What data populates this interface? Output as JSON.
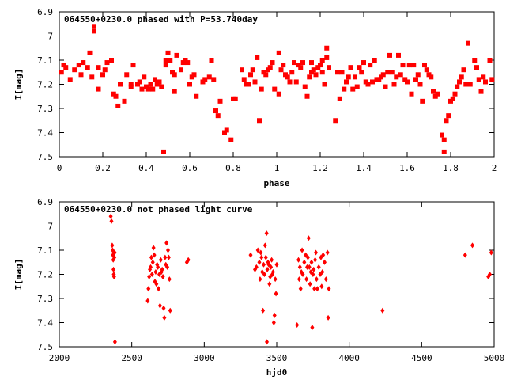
{
  "chart_data": [
    {
      "type": "scatter",
      "title": "064550+0230.0 phased with P=53.740day",
      "xlabel": "phase",
      "ylabel": "I[mag]",
      "xlim": [
        0,
        2
      ],
      "ylim": [
        6.9,
        7.5
      ],
      "y_inverted": true,
      "xticks": [
        "0",
        "0.2",
        "0.4",
        "0.6",
        "0.8",
        "1",
        "1.2",
        "1.4",
        "1.6",
        "1.8",
        "2"
      ],
      "yticks": [
        "6.9",
        "7",
        "7.1",
        "7.2",
        "7.3",
        "7.4",
        "7.5"
      ],
      "marker": "filled-square",
      "color": "#ff0000",
      "points": [
        [
          0.01,
          7.15
        ],
        [
          0.02,
          7.12
        ],
        [
          0.03,
          7.13
        ],
        [
          0.05,
          7.18
        ],
        [
          0.07,
          7.14
        ],
        [
          0.09,
          7.12
        ],
        [
          0.1,
          7.16
        ],
        [
          0.11,
          7.11
        ],
        [
          0.13,
          7.13
        ],
        [
          0.14,
          7.07
        ],
        [
          0.15,
          7.17
        ],
        [
          0.16,
          6.96
        ],
        [
          0.16,
          6.98
        ],
        [
          0.18,
          7.13
        ],
        [
          0.18,
          7.22
        ],
        [
          0.2,
          7.16
        ],
        [
          0.21,
          7.14
        ],
        [
          0.22,
          7.11
        ],
        [
          0.24,
          7.1
        ],
        [
          0.25,
          7.24
        ],
        [
          0.26,
          7.25
        ],
        [
          0.27,
          7.29
        ],
        [
          0.28,
          7.2
        ],
        [
          0.3,
          7.27
        ],
        [
          0.31,
          7.16
        ],
        [
          0.33,
          7.21
        ],
        [
          0.33,
          7.2
        ],
        [
          0.34,
          7.12
        ],
        [
          0.36,
          7.2
        ],
        [
          0.37,
          7.19
        ],
        [
          0.38,
          7.22
        ],
        [
          0.39,
          7.17
        ],
        [
          0.4,
          7.21
        ],
        [
          0.41,
          7.22
        ],
        [
          0.42,
          7.2
        ],
        [
          0.43,
          7.22
        ],
        [
          0.44,
          7.18
        ],
        [
          0.45,
          7.2
        ],
        [
          0.46,
          7.19
        ],
        [
          0.47,
          7.21
        ],
        [
          0.48,
          7.48
        ],
        [
          0.49,
          7.1
        ],
        [
          0.49,
          7.12
        ],
        [
          0.5,
          7.07
        ],
        [
          0.51,
          7.1
        ],
        [
          0.52,
          7.15
        ],
        [
          0.53,
          7.16
        ],
        [
          0.53,
          7.23
        ],
        [
          0.54,
          7.08
        ],
        [
          0.56,
          7.14
        ],
        [
          0.57,
          7.11
        ],
        [
          0.58,
          7.1
        ],
        [
          0.59,
          7.11
        ],
        [
          0.6,
          7.2
        ],
        [
          0.61,
          7.17
        ],
        [
          0.62,
          7.16
        ],
        [
          0.63,
          7.25
        ],
        [
          0.66,
          7.19
        ],
        [
          0.67,
          7.18
        ],
        [
          0.69,
          7.17
        ],
        [
          0.7,
          7.1
        ],
        [
          0.71,
          7.18
        ],
        [
          0.72,
          7.31
        ],
        [
          0.73,
          7.33
        ],
        [
          0.74,
          7.27
        ],
        [
          0.76,
          7.4
        ],
        [
          0.77,
          7.39
        ],
        [
          0.79,
          7.43
        ],
        [
          0.8,
          7.26
        ],
        [
          0.81,
          7.26
        ],
        [
          0.84,
          7.14
        ],
        [
          0.85,
          7.18
        ],
        [
          0.86,
          7.2
        ],
        [
          0.87,
          7.2
        ],
        [
          0.88,
          7.16
        ],
        [
          0.89,
          7.14
        ],
        [
          0.9,
          7.19
        ],
        [
          0.91,
          7.09
        ],
        [
          0.92,
          7.35
        ],
        [
          0.93,
          7.22
        ],
        [
          0.94,
          7.15
        ],
        [
          0.95,
          7.16
        ],
        [
          0.96,
          7.14
        ],
        [
          0.97,
          7.13
        ],
        [
          0.98,
          7.11
        ],
        [
          0.99,
          7.22
        ],
        [
          1.01,
          7.24
        ],
        [
          1.01,
          7.07
        ],
        [
          1.02,
          7.14
        ],
        [
          1.03,
          7.12
        ],
        [
          1.04,
          7.16
        ],
        [
          1.05,
          7.17
        ],
        [
          1.06,
          7.19
        ],
        [
          1.07,
          7.15
        ],
        [
          1.08,
          7.11
        ],
        [
          1.09,
          7.19
        ],
        [
          1.1,
          7.12
        ],
        [
          1.11,
          7.13
        ],
        [
          1.12,
          7.11
        ],
        [
          1.13,
          7.21
        ],
        [
          1.14,
          7.25
        ],
        [
          1.15,
          7.17
        ],
        [
          1.16,
          7.11
        ],
        [
          1.16,
          7.15
        ],
        [
          1.17,
          7.14
        ],
        [
          1.18,
          7.16
        ],
        [
          1.19,
          7.13
        ],
        [
          1.2,
          7.12
        ],
        [
          1.21,
          7.15
        ],
        [
          1.21,
          7.1
        ],
        [
          1.22,
          7.2
        ],
        [
          1.23,
          7.05
        ],
        [
          1.23,
          7.09
        ],
        [
          1.24,
          7.13
        ],
        [
          1.27,
          7.35
        ],
        [
          1.28,
          7.15
        ],
        [
          1.29,
          7.26
        ],
        [
          1.3,
          7.15
        ],
        [
          1.31,
          7.22
        ],
        [
          1.32,
          7.19
        ],
        [
          1.33,
          7.17
        ],
        [
          1.34,
          7.13
        ],
        [
          1.35,
          7.22
        ],
        [
          1.36,
          7.17
        ],
        [
          1.37,
          7.21
        ],
        [
          1.38,
          7.13
        ],
        [
          1.39,
          7.15
        ],
        [
          1.4,
          7.11
        ],
        [
          1.41,
          7.19
        ],
        [
          1.42,
          7.2
        ],
        [
          1.43,
          7.12
        ],
        [
          1.44,
          7.19
        ],
        [
          1.45,
          7.1
        ],
        [
          1.46,
          7.18
        ],
        [
          1.47,
          7.18
        ],
        [
          1.48,
          7.17
        ],
        [
          1.49,
          7.16
        ],
        [
          1.5,
          7.21
        ],
        [
          1.51,
          7.15
        ],
        [
          1.52,
          7.08
        ],
        [
          1.53,
          7.15
        ],
        [
          1.54,
          7.2
        ],
        [
          1.55,
          7.17
        ],
        [
          1.56,
          7.08
        ],
        [
          1.57,
          7.16
        ],
        [
          1.58,
          7.12
        ],
        [
          1.59,
          7.18
        ],
        [
          1.6,
          7.19
        ],
        [
          1.61,
          7.12
        ],
        [
          1.62,
          7.24
        ],
        [
          1.63,
          7.12
        ],
        [
          1.64,
          7.18
        ],
        [
          1.65,
          7.16
        ],
        [
          1.66,
          7.2
        ],
        [
          1.67,
          7.27
        ],
        [
          1.68,
          7.12
        ],
        [
          1.69,
          7.14
        ],
        [
          1.7,
          7.16
        ],
        [
          1.71,
          7.17
        ],
        [
          1.72,
          7.23
        ],
        [
          1.73,
          7.25
        ],
        [
          1.74,
          7.24
        ],
        [
          1.76,
          7.41
        ],
        [
          1.77,
          7.43
        ],
        [
          1.77,
          7.48
        ],
        [
          1.78,
          7.35
        ],
        [
          1.79,
          7.33
        ],
        [
          1.8,
          7.27
        ],
        [
          1.81,
          7.26
        ],
        [
          1.82,
          7.24
        ],
        [
          1.83,
          7.21
        ],
        [
          1.84,
          7.19
        ],
        [
          1.85,
          7.17
        ],
        [
          1.86,
          7.14
        ],
        [
          1.87,
          7.2
        ],
        [
          1.88,
          7.03
        ],
        [
          1.89,
          7.2
        ],
        [
          1.91,
          7.1
        ],
        [
          1.92,
          7.13
        ],
        [
          1.93,
          7.18
        ],
        [
          1.94,
          7.23
        ],
        [
          1.95,
          7.17
        ],
        [
          1.96,
          7.19
        ],
        [
          1.98,
          7.1
        ],
        [
          1.99,
          7.18
        ]
      ]
    },
    {
      "type": "scatter",
      "title": "064550+0230.0 not phased light curve",
      "xlabel": "hjd0",
      "ylabel": "I[mag]",
      "xlim": [
        2000,
        5000
      ],
      "ylim": [
        6.9,
        7.5
      ],
      "y_inverted": true,
      "xticks": [
        "2000",
        "2500",
        "3000",
        "3500",
        "4000",
        "4500",
        "5000"
      ],
      "yticks": [
        "6.9",
        "7",
        "7.1",
        "7.2",
        "7.3",
        "7.4",
        "7.5"
      ],
      "marker": "filled-diamond",
      "color": "#ff0000",
      "points": [
        [
          2355,
          6.96
        ],
        [
          2360,
          6.98
        ],
        [
          2365,
          7.08
        ],
        [
          2368,
          7.1
        ],
        [
          2370,
          7.12
        ],
        [
          2372,
          7.14
        ],
        [
          2374,
          7.18
        ],
        [
          2376,
          7.2
        ],
        [
          2378,
          7.21
        ],
        [
          2380,
          7.13
        ],
        [
          2382,
          7.11
        ],
        [
          2384,
          7.48
        ],
        [
          2610,
          7.31
        ],
        [
          2615,
          7.26
        ],
        [
          2620,
          7.21
        ],
        [
          2625,
          7.18
        ],
        [
          2630,
          7.17
        ],
        [
          2635,
          7.13
        ],
        [
          2640,
          7.2
        ],
        [
          2645,
          7.15
        ],
        [
          2650,
          7.09
        ],
        [
          2655,
          7.12
        ],
        [
          2660,
          7.23
        ],
        [
          2665,
          7.19
        ],
        [
          2670,
          7.24
        ],
        [
          2675,
          7.16
        ],
        [
          2680,
          7.17
        ],
        [
          2685,
          7.26
        ],
        [
          2690,
          7.2
        ],
        [
          2695,
          7.33
        ],
        [
          2700,
          7.14
        ],
        [
          2705,
          7.19
        ],
        [
          2710,
          7.18
        ],
        [
          2715,
          7.21
        ],
        [
          2720,
          7.34
        ],
        [
          2725,
          7.38
        ],
        [
          2730,
          7.13
        ],
        [
          2735,
          7.16
        ],
        [
          2740,
          7.07
        ],
        [
          2745,
          7.17
        ],
        [
          2750,
          7.1
        ],
        [
          2755,
          7.13
        ],
        [
          2760,
          7.22
        ],
        [
          2765,
          7.35
        ],
        [
          2880,
          7.15
        ],
        [
          2890,
          7.14
        ],
        [
          3320,
          7.12
        ],
        [
          3350,
          7.18
        ],
        [
          3360,
          7.17
        ],
        [
          3370,
          7.1
        ],
        [
          3380,
          7.15
        ],
        [
          3385,
          7.22
        ],
        [
          3390,
          7.11
        ],
        [
          3395,
          7.13
        ],
        [
          3400,
          7.19
        ],
        [
          3405,
          7.35
        ],
        [
          3410,
          7.16
        ],
        [
          3415,
          7.2
        ],
        [
          3420,
          7.08
        ],
        [
          3425,
          7.13
        ],
        [
          3430,
          7.03
        ],
        [
          3432,
          7.48
        ],
        [
          3435,
          7.18
        ],
        [
          3440,
          7.15
        ],
        [
          3445,
          7.16
        ],
        [
          3450,
          7.24
        ],
        [
          3455,
          7.21
        ],
        [
          3460,
          7.17
        ],
        [
          3465,
          7.14
        ],
        [
          3470,
          7.2
        ],
        [
          3475,
          7.19
        ],
        [
          3480,
          7.4
        ],
        [
          3485,
          7.37
        ],
        [
          3490,
          7.22
        ],
        [
          3495,
          7.28
        ],
        [
          3500,
          7.16
        ],
        [
          3640,
          7.41
        ],
        [
          3650,
          7.14
        ],
        [
          3655,
          7.22
        ],
        [
          3660,
          7.17
        ],
        [
          3665,
          7.26
        ],
        [
          3670,
          7.19
        ],
        [
          3675,
          7.1
        ],
        [
          3680,
          7.2
        ],
        [
          3690,
          7.15
        ],
        [
          3700,
          7.12
        ],
        [
          3705,
          7.22
        ],
        [
          3710,
          7.17
        ],
        [
          3715,
          7.13
        ],
        [
          3720,
          7.05
        ],
        [
          3725,
          7.17
        ],
        [
          3730,
          7.24
        ],
        [
          3735,
          7.19
        ],
        [
          3740,
          7.15
        ],
        [
          3745,
          7.42
        ],
        [
          3750,
          7.2
        ],
        [
          3755,
          7.18
        ],
        [
          3760,
          7.26
        ],
        [
          3765,
          7.14
        ],
        [
          3770,
          7.11
        ],
        [
          3775,
          7.22
        ],
        [
          3780,
          7.26
        ],
        [
          3790,
          7.17
        ],
        [
          3800,
          7.2
        ],
        [
          3805,
          7.13
        ],
        [
          3810,
          7.25
        ],
        [
          3815,
          7.19
        ],
        [
          3820,
          7.12
        ],
        [
          3830,
          7.15
        ],
        [
          3840,
          7.22
        ],
        [
          3850,
          7.11
        ],
        [
          3855,
          7.38
        ],
        [
          3860,
          7.26
        ],
        [
          4230,
          7.35
        ],
        [
          4800,
          7.12
        ],
        [
          4850,
          7.08
        ],
        [
          4960,
          7.21
        ],
        [
          4970,
          7.2
        ],
        [
          4980,
          7.11
        ]
      ]
    }
  ]
}
